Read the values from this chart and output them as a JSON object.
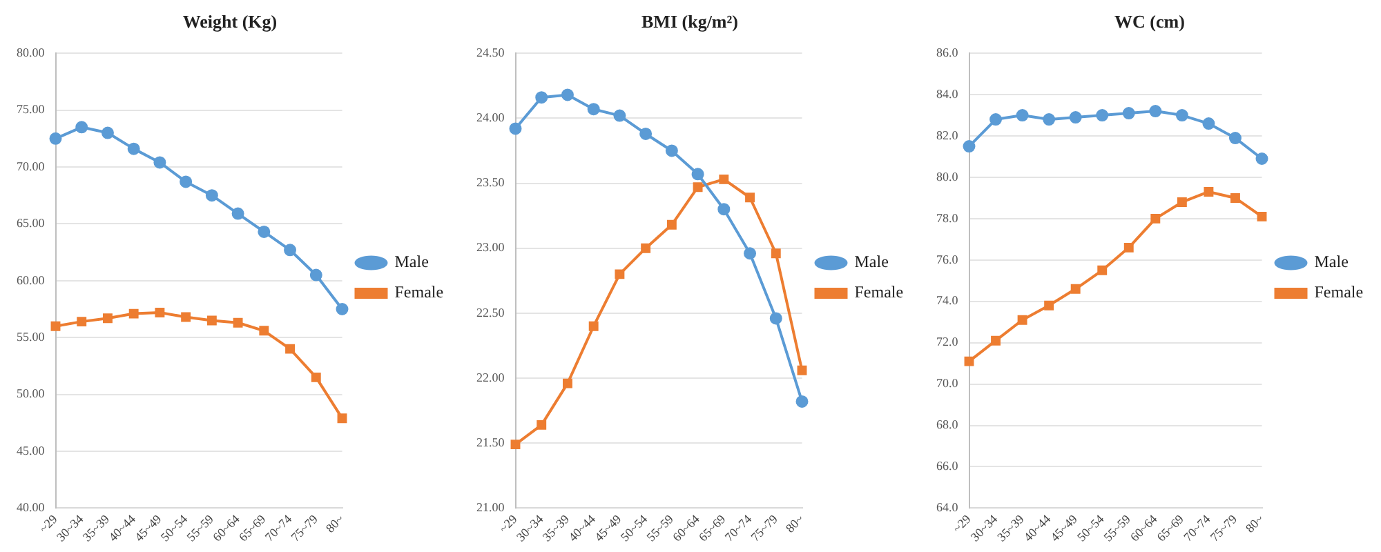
{
  "chart_data": [
    {
      "type": "line",
      "title": "Weight (Kg)",
      "categories": [
        "~29",
        "30~34",
        "35~39",
        "40~44",
        "45~49",
        "50~54",
        "55~59",
        "60~64",
        "65~69",
        "70~74",
        "75~79",
        "80~"
      ],
      "series": [
        {
          "name": "Male",
          "color": "#5b9bd5",
          "marker": "circle",
          "values": [
            72.5,
            73.5,
            73.0,
            71.6,
            70.4,
            68.7,
            67.5,
            65.9,
            64.3,
            62.7,
            60.5,
            57.5
          ]
        },
        {
          "name": "Female",
          "color": "#ed7d31",
          "marker": "square",
          "values": [
            56.0,
            56.4,
            56.7,
            57.1,
            57.2,
            56.8,
            56.5,
            56.3,
            55.6,
            54.0,
            51.5,
            47.9
          ]
        }
      ],
      "ylim": [
        40,
        80
      ],
      "yticks": [
        {
          "value": 40,
          "label": "40.00"
        },
        {
          "value": 45,
          "label": "45.00"
        },
        {
          "value": 50,
          "label": "50.00"
        },
        {
          "value": 55,
          "label": "55.00"
        },
        {
          "value": 60,
          "label": "60.00"
        },
        {
          "value": 65,
          "label": "65.00"
        },
        {
          "value": 70,
          "label": "70.00"
        },
        {
          "value": 75,
          "label": "75.00"
        },
        {
          "value": 80,
          "label": "80.00"
        }
      ],
      "grid": "y",
      "legend": "right"
    },
    {
      "type": "line",
      "title": "BMI (kg/m²)",
      "categories": [
        "~29",
        "30~34",
        "35~39",
        "40~44",
        "45~49",
        "50~54",
        "55~59",
        "60~64",
        "65~69",
        "70~74",
        "75~79",
        "80~"
      ],
      "series": [
        {
          "name": "Male",
          "color": "#5b9bd5",
          "marker": "circle",
          "values": [
            23.92,
            24.16,
            24.18,
            24.07,
            24.02,
            23.88,
            23.75,
            23.57,
            23.3,
            22.96,
            22.46,
            21.82
          ]
        },
        {
          "name": "Female",
          "color": "#ed7d31",
          "marker": "square",
          "values": [
            21.49,
            21.64,
            21.96,
            22.4,
            22.8,
            23.0,
            23.18,
            23.47,
            23.53,
            23.39,
            22.96,
            22.06
          ]
        }
      ],
      "ylim": [
        21,
        24.5
      ],
      "yticks": [
        {
          "value": 21,
          "label": "21.00"
        },
        {
          "value": 21.5,
          "label": "21.50"
        },
        {
          "value": 22,
          "label": "22.00"
        },
        {
          "value": 22.5,
          "label": "22.50"
        },
        {
          "value": 23,
          "label": "23.00"
        },
        {
          "value": 23.5,
          "label": "23.50"
        },
        {
          "value": 24,
          "label": "24.00"
        },
        {
          "value": 24.5,
          "label": "24.50"
        }
      ],
      "grid": "y",
      "legend": "right"
    },
    {
      "type": "line",
      "title": "WC (cm)",
      "categories": [
        "~29",
        "30~34",
        "35~39",
        "40~44",
        "45~49",
        "50~54",
        "55~59",
        "60~64",
        "65~69",
        "70~74",
        "75~79",
        "80~"
      ],
      "series": [
        {
          "name": "Male",
          "color": "#5b9bd5",
          "marker": "circle",
          "values": [
            81.5,
            82.8,
            83.0,
            82.8,
            82.9,
            83.0,
            83.1,
            83.2,
            83.0,
            82.6,
            81.9,
            80.9
          ]
        },
        {
          "name": "Female",
          "color": "#ed7d31",
          "marker": "square",
          "values": [
            71.1,
            72.1,
            73.1,
            73.8,
            74.6,
            75.5,
            76.6,
            78.0,
            78.8,
            79.3,
            79.0,
            78.1
          ]
        }
      ],
      "ylim": [
        64,
        86
      ],
      "yticks": [
        {
          "value": 64,
          "label": "64.0"
        },
        {
          "value": 66,
          "label": "66.0"
        },
        {
          "value": 68,
          "label": "68.0"
        },
        {
          "value": 70,
          "label": "70.0"
        },
        {
          "value": 72,
          "label": "72.0"
        },
        {
          "value": 74,
          "label": "74.0"
        },
        {
          "value": 76,
          "label": "76.0"
        },
        {
          "value": 78,
          "label": "78.0"
        },
        {
          "value": 80,
          "label": "80.0"
        },
        {
          "value": 82,
          "label": "82.0"
        },
        {
          "value": 84,
          "label": "84.0"
        },
        {
          "value": 86,
          "label": "86.0"
        }
      ],
      "grid": "y",
      "legend": "right"
    }
  ]
}
